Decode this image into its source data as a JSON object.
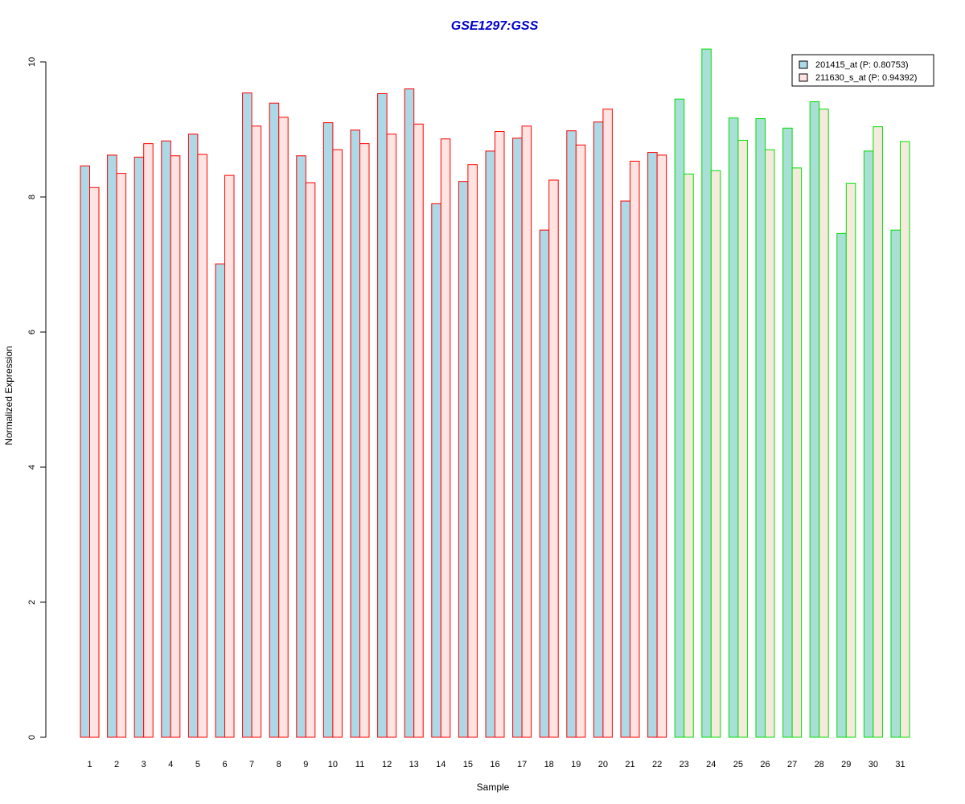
{
  "chart_data": {
    "type": "bar",
    "title": "GSE1297:GSS",
    "title_color": "#0000CC",
    "xlabel": "Sample",
    "ylabel": "Normalized Expression",
    "ylim": [
      0,
      10
    ],
    "yticks": [
      0,
      2,
      4,
      6,
      8,
      10
    ],
    "grid": false,
    "legend_position": "top-right",
    "categories": [
      "1",
      "2",
      "3",
      "4",
      "5",
      "6",
      "7",
      "8",
      "9",
      "10",
      "11",
      "12",
      "13",
      "14",
      "15",
      "16",
      "17",
      "18",
      "19",
      "20",
      "21",
      "22",
      "23",
      "24",
      "25",
      "26",
      "27",
      "28",
      "29",
      "30",
      "31"
    ],
    "series": [
      {
        "name": "201415_at (P: 0.80753)",
        "values": [
          8.46,
          8.62,
          8.59,
          8.83,
          8.93,
          7.01,
          9.54,
          9.39,
          8.61,
          9.1,
          8.99,
          9.53,
          9.6,
          7.9,
          8.23,
          8.68,
          8.87,
          7.51,
          8.98,
          9.11,
          7.94,
          8.66,
          9.45,
          10.19,
          9.17,
          9.16,
          9.02,
          9.41,
          7.46,
          8.68,
          7.51
        ]
      },
      {
        "name": "211630_s_at (P: 0.94392)",
        "values": [
          8.14,
          8.35,
          8.79,
          8.61,
          8.63,
          8.32,
          9.05,
          9.18,
          8.21,
          8.7,
          8.79,
          8.93,
          9.08,
          8.86,
          8.48,
          8.97,
          9.05,
          8.25,
          8.77,
          9.3,
          8.53,
          8.62,
          8.34,
          8.39,
          8.84,
          8.7,
          8.43,
          9.3,
          8.2,
          9.04,
          8.82
        ]
      }
    ],
    "group_border_colors": [
      "#FF0000",
      "#FF0000",
      "#FF0000",
      "#FF0000",
      "#FF0000",
      "#FF0000",
      "#FF0000",
      "#FF0000",
      "#FF0000",
      "#FF0000",
      "#FF0000",
      "#FF0000",
      "#FF0000",
      "#FF0000",
      "#FF0000",
      "#FF0000",
      "#FF0000",
      "#FF0000",
      "#FF0000",
      "#FF0000",
      "#FF0000",
      "#FF0000",
      "#00DD00",
      "#00DD00",
      "#00DD00",
      "#00DD00",
      "#00DD00",
      "#00DD00",
      "#00DD00",
      "#00DD00",
      "#00DD00"
    ],
    "series_fill_colors": {
      "red_group": [
        "#ADD8E6",
        "#FFE4E1"
      ],
      "green_group": [
        "#A8E0D8",
        "#F5EBDD"
      ]
    },
    "legend_colors": [
      "#ADD8E6",
      "#FFE4E1"
    ]
  }
}
